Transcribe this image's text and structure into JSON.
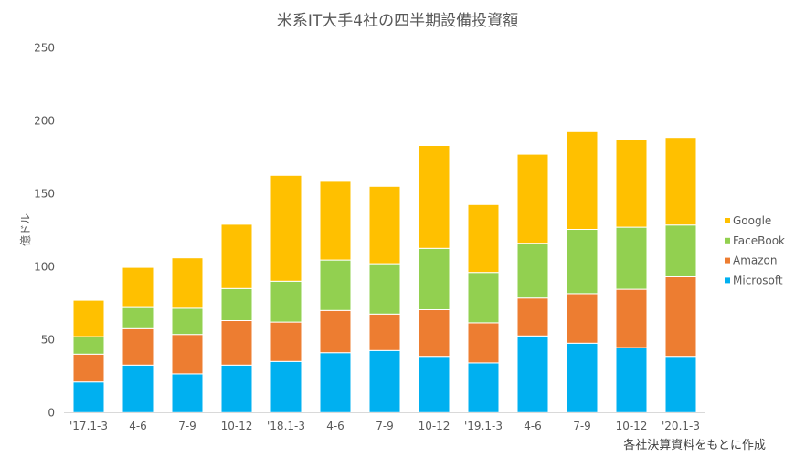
{
  "chart_data": {
    "type": "bar",
    "stacked": true,
    "title": "米系IT大手4社の四半期設備投資額",
    "ylabel": "億ドル",
    "xlabel": "",
    "note": "各社決算資料をもとに作成",
    "ylim": [
      0,
      250
    ],
    "yticks": [
      0,
      50,
      100,
      150,
      200,
      250
    ],
    "grid": false,
    "legend_position": "right",
    "categories": [
      "'17.1-3",
      "4-6",
      "7-9",
      "10-12",
      "'18.1-3",
      "4-6",
      "7-9",
      "10-12",
      "'19.1-3",
      "4-6",
      "7-9",
      "10-12",
      "'20.1-3"
    ],
    "series": [
      {
        "name": "Microsoft",
        "color": "#00B0F0",
        "values": [
          21,
          32.5,
          26.5,
          32.5,
          35,
          41,
          42.5,
          38.5,
          34,
          52.5,
          47.5,
          44.5,
          38.5
        ]
      },
      {
        "name": "Amazon",
        "color": "#ED7D31",
        "values": [
          19,
          25,
          27,
          30.5,
          27,
          29,
          25,
          32,
          27.5,
          26,
          34,
          40,
          54.5
        ]
      },
      {
        "name": "FaceBook",
        "color": "#92D050",
        "values": [
          12,
          14.5,
          18,
          22,
          28,
          34.5,
          34.5,
          42,
          34.5,
          37.5,
          44,
          42.5,
          35.5
        ]
      },
      {
        "name": "Google",
        "color": "#FFC000",
        "values": [
          25,
          27.5,
          34.5,
          44,
          72.5,
          54.5,
          53,
          70.5,
          46.5,
          61,
          67,
          60,
          60
        ]
      }
    ]
  }
}
